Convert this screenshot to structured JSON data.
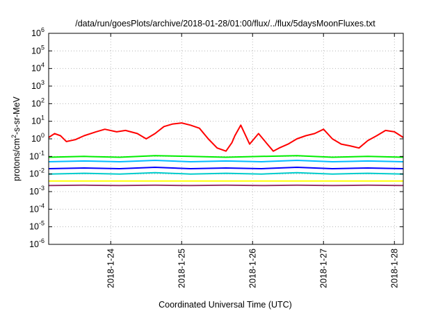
{
  "chart_data": {
    "type": "line",
    "title": "/data/run/goesPlots/archive/2018-01-28/01:00/flux/../flux/5daysMoonFluxes.txt",
    "xlabel": "Coordinated Universal Time (UTC)",
    "ylabel_prefix": "protons/cm",
    "ylabel_sup": "2",
    "ylabel_suffix": "-s-sr-MeV",
    "y_scale": "log",
    "ylim": [
      1e-06,
      1000000.0
    ],
    "xlim": [
      "2018-01-23T03:00",
      "2018-01-28T03:00"
    ],
    "grid": true,
    "x_ticks": [
      {
        "label": "2018-1-24",
        "t": "2018-01-24T00:00"
      },
      {
        "label": "2018-1-25",
        "t": "2018-01-25T00:00"
      },
      {
        "label": "2018-1-26",
        "t": "2018-01-26T00:00"
      },
      {
        "label": "2018-1-27",
        "t": "2018-01-27T00:00"
      },
      {
        "label": "2018-1-28",
        "t": "2018-01-28T00:00"
      }
    ],
    "y_ticks": [
      {
        "base": "10",
        "exp": "6",
        "value": 1000000.0
      },
      {
        "base": "10",
        "exp": "5",
        "value": 100000.0
      },
      {
        "base": "10",
        "exp": "4",
        "value": 10000.0
      },
      {
        "base": "10",
        "exp": "3",
        "value": 1000.0
      },
      {
        "base": "10",
        "exp": "2",
        "value": 100.0
      },
      {
        "base": "10",
        "exp": "1",
        "value": 10.0
      },
      {
        "base": "10",
        "exp": "0",
        "value": 1.0
      },
      {
        "base": "10",
        "exp": "-1",
        "value": 0.1
      },
      {
        "base": "10",
        "exp": "-2",
        "value": 0.01
      },
      {
        "base": "10",
        "exp": "-3",
        "value": 0.001
      },
      {
        "base": "10",
        "exp": "-4",
        "value": 0.0001
      },
      {
        "base": "10",
        "exp": "-5",
        "value": 1e-05
      },
      {
        "base": "10",
        "exp": "-6",
        "value": 1e-06
      }
    ],
    "series": [
      {
        "color": "#ff0000",
        "x": [
          "2018-01-23T03:00",
          "2018-01-23T05:00",
          "2018-01-23T07:00",
          "2018-01-23T09:00",
          "2018-01-23T12:00",
          "2018-01-23T15:00",
          "2018-01-23T19:00",
          "2018-01-23T22:00",
          "2018-01-24T02:00",
          "2018-01-24T05:00",
          "2018-01-24T09:00",
          "2018-01-24T12:00",
          "2018-01-24T15:00",
          "2018-01-24T18:00",
          "2018-01-24T21:00",
          "2018-01-25T00:00",
          "2018-01-25T03:00",
          "2018-01-25T06:00",
          "2018-01-25T09:00",
          "2018-01-25T12:00",
          "2018-01-25T15:00",
          "2018-01-25T17:00",
          "2018-01-25T18:00",
          "2018-01-25T20:00",
          "2018-01-25T23:00",
          "2018-01-26T02:00",
          "2018-01-26T05:00",
          "2018-01-26T07:00",
          "2018-01-26T09:00",
          "2018-01-26T12:00",
          "2018-01-26T15:00",
          "2018-01-26T18:00",
          "2018-01-26T21:00",
          "2018-01-27T00:00",
          "2018-01-27T03:00",
          "2018-01-27T06:00",
          "2018-01-27T09:00",
          "2018-01-27T12:00",
          "2018-01-27T15:00",
          "2018-01-27T18:00",
          "2018-01-27T21:00",
          "2018-01-28T00:00",
          "2018-01-28T03:00"
        ],
        "values": [
          1.2,
          2.0,
          1.5,
          0.7,
          0.9,
          1.5,
          2.5,
          3.5,
          2.5,
          3.0,
          2.0,
          1.0,
          2.0,
          5.0,
          7.0,
          8.0,
          6.0,
          4.0,
          1.0,
          0.3,
          0.2,
          0.6,
          1.5,
          6.0,
          0.5,
          2.0,
          0.5,
          0.2,
          0.3,
          0.5,
          1.0,
          1.5,
          2.0,
          3.5,
          1.0,
          0.5,
          0.4,
          0.3,
          0.8,
          1.5,
          3.0,
          2.5,
          1.2
        ]
      },
      {
        "color": "#00ee00",
        "x": [
          "2018-01-23T03:00",
          "2018-01-23T15:00",
          "2018-01-24T03:00",
          "2018-01-24T15:00",
          "2018-01-25T03:00",
          "2018-01-25T15:00",
          "2018-01-26T03:00",
          "2018-01-26T15:00",
          "2018-01-27T03:00",
          "2018-01-27T15:00",
          "2018-01-28T03:00"
        ],
        "values": [
          0.09,
          0.1,
          0.09,
          0.11,
          0.1,
          0.09,
          0.1,
          0.11,
          0.09,
          0.1,
          0.09
        ]
      },
      {
        "color": "#00bbff",
        "x": [
          "2018-01-23T03:00",
          "2018-01-23T15:00",
          "2018-01-24T03:00",
          "2018-01-24T15:00",
          "2018-01-25T03:00",
          "2018-01-25T15:00",
          "2018-01-26T03:00",
          "2018-01-26T15:00",
          "2018-01-27T03:00",
          "2018-01-27T15:00",
          "2018-01-28T03:00"
        ],
        "values": [
          0.05,
          0.055,
          0.05,
          0.06,
          0.05,
          0.055,
          0.05,
          0.06,
          0.05,
          0.055,
          0.05
        ]
      },
      {
        "color": "#0000ff",
        "x": [
          "2018-01-23T03:00",
          "2018-01-23T15:00",
          "2018-01-24T03:00",
          "2018-01-24T15:00",
          "2018-01-25T03:00",
          "2018-01-25T15:00",
          "2018-01-26T03:00",
          "2018-01-26T15:00",
          "2018-01-27T03:00",
          "2018-01-27T15:00",
          "2018-01-28T03:00"
        ],
        "values": [
          0.02,
          0.022,
          0.02,
          0.024,
          0.02,
          0.022,
          0.02,
          0.024,
          0.02,
          0.022,
          0.02
        ]
      },
      {
        "color": "#00cccc",
        "x": [
          "2018-01-23T03:00",
          "2018-01-23T15:00",
          "2018-01-24T03:00",
          "2018-01-24T15:00",
          "2018-01-25T03:00",
          "2018-01-25T15:00",
          "2018-01-26T03:00",
          "2018-01-26T15:00",
          "2018-01-27T03:00",
          "2018-01-27T15:00",
          "2018-01-28T03:00"
        ],
        "values": [
          0.01,
          0.011,
          0.01,
          0.012,
          0.01,
          0.011,
          0.01,
          0.012,
          0.01,
          0.011,
          0.01
        ]
      },
      {
        "color": "#ffff00",
        "x": [
          "2018-01-23T03:00",
          "2018-01-23T15:00",
          "2018-01-24T03:00",
          "2018-01-24T15:00",
          "2018-01-25T03:00",
          "2018-01-25T15:00",
          "2018-01-26T03:00",
          "2018-01-26T15:00",
          "2018-01-27T03:00",
          "2018-01-27T15:00",
          "2018-01-28T03:00"
        ],
        "values": [
          0.004,
          0.004,
          0.004,
          0.004,
          0.004,
          0.004,
          0.004,
          0.004,
          0.004,
          0.004,
          0.004
        ]
      },
      {
        "color": "#993366",
        "x": [
          "2018-01-23T03:00",
          "2018-01-23T15:00",
          "2018-01-24T03:00",
          "2018-01-24T15:00",
          "2018-01-25T03:00",
          "2018-01-25T15:00",
          "2018-01-26T03:00",
          "2018-01-26T15:00",
          "2018-01-27T03:00",
          "2018-01-27T15:00",
          "2018-01-28T03:00"
        ],
        "values": [
          0.0022,
          0.0023,
          0.0022,
          0.0023,
          0.0022,
          0.0023,
          0.0022,
          0.0023,
          0.0022,
          0.0023,
          0.0022
        ]
      }
    ]
  }
}
